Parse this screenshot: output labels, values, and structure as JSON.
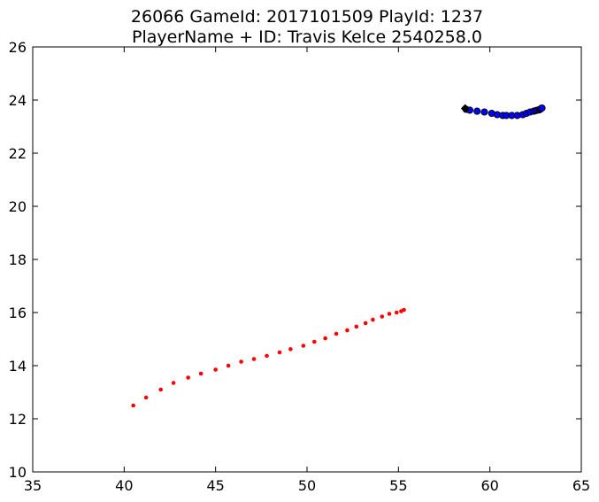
{
  "chart_data": {
    "type": "scatter",
    "title_line1": "26066 GameId: 2017101509 PlayId: 1237",
    "title_line2": "PlayerName + ID: Travis Kelce 2540258.0",
    "xlabel": "",
    "ylabel": "",
    "xlim": [
      35,
      65
    ],
    "ylim": [
      10,
      26
    ],
    "xticks": [
      35,
      40,
      45,
      50,
      55,
      60,
      65
    ],
    "yticks": [
      10,
      12,
      14,
      16,
      18,
      20,
      22,
      24,
      26
    ],
    "grid": false,
    "series": [
      {
        "name": "trajectory",
        "color": "#ff0000",
        "marker": "small-dot",
        "x": [
          40.5,
          41.2,
          42.0,
          42.7,
          43.5,
          44.2,
          45.0,
          45.7,
          46.4,
          47.1,
          47.8,
          48.5,
          49.1,
          49.8,
          50.4,
          51.0,
          51.6,
          52.2,
          52.7,
          53.2,
          53.6,
          54.1,
          54.5,
          54.9,
          55.15,
          55.3
        ],
        "y": [
          12.5,
          12.8,
          13.1,
          13.35,
          13.55,
          13.7,
          13.85,
          14.0,
          14.15,
          14.25,
          14.37,
          14.5,
          14.62,
          14.75,
          14.9,
          15.03,
          15.2,
          15.33,
          15.47,
          15.6,
          15.73,
          15.85,
          15.95,
          16.0,
          16.05,
          16.1
        ]
      },
      {
        "name": "blue-points",
        "color": "#0000ff",
        "edge": "#000000",
        "marker": "circle",
        "x": [
          58.7,
          58.9,
          59.3,
          59.7,
          60.1,
          60.4,
          60.7,
          60.9,
          61.2,
          61.5,
          61.8,
          62.0,
          62.2,
          62.4,
          62.5,
          62.6,
          62.7,
          62.75,
          62.8,
          62.85
        ],
        "y": [
          23.65,
          23.62,
          23.58,
          23.55,
          23.5,
          23.45,
          23.42,
          23.42,
          23.42,
          23.42,
          23.45,
          23.5,
          23.55,
          23.58,
          23.6,
          23.62,
          23.63,
          23.65,
          23.68,
          23.7
        ]
      },
      {
        "name": "black-points",
        "color": "#000000",
        "marker": "diamond",
        "x": [
          58.6,
          58.65,
          58.7
        ],
        "y": [
          23.68,
          23.72,
          23.66
        ]
      }
    ]
  }
}
